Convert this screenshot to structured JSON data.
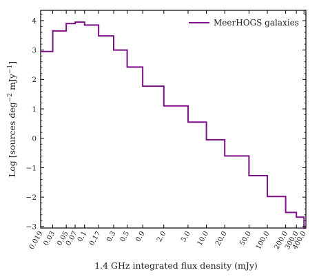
{
  "chart_data": {
    "type": "line",
    "style": "step-histogram",
    "xscale": "log",
    "xlabel": "1.4 GHz integrated flux density (mJy)",
    "ylabel_parts": {
      "main": "Log [sources deg",
      "exp1": "−2",
      "mid": " mJy",
      "exp2": "−1",
      "end": "]"
    },
    "xlim": [
      0.019,
      430
    ],
    "ylim": [
      -3.05,
      4.35
    ],
    "x_tick_labels": [
      "0.019",
      "0.03",
      "0.05",
      "0.07",
      "0.1",
      "0.17",
      "0.3",
      "0.5",
      "0.9",
      "2.0",
      "5.0",
      "10.0",
      "20.0",
      "50.0",
      "100.0",
      "200.0",
      "300.0",
      "400.0"
    ],
    "x_tick_values": [
      0.019,
      0.03,
      0.05,
      0.07,
      0.1,
      0.17,
      0.3,
      0.5,
      0.9,
      2.0,
      5.0,
      10.0,
      20.0,
      50.0,
      100.0,
      200.0,
      300.0,
      400.0
    ],
    "y_ticks": [
      -3,
      -2,
      -1,
      0,
      1,
      2,
      3,
      4
    ],
    "y_tick_labels": [
      "−3",
      "−2",
      "−1",
      "0",
      "1",
      "2",
      "3",
      "4"
    ],
    "grid": false,
    "legend_position": "top-right",
    "series": [
      {
        "name": "MeerHOGS galaxies",
        "color": "#7b0f86",
        "bin_edges": [
          0.019,
          0.03,
          0.05,
          0.07,
          0.1,
          0.17,
          0.3,
          0.5,
          0.9,
          2.0,
          5.0,
          10.0,
          20.0,
          50.0,
          100.0,
          200.0,
          300.0,
          400.0
        ],
        "values": [
          2.95,
          3.65,
          3.9,
          3.95,
          3.85,
          3.48,
          3.0,
          2.42,
          1.77,
          1.1,
          0.55,
          -0.05,
          -0.6,
          -1.27,
          -1.98,
          -2.52,
          -2.68,
          -3.05
        ]
      }
    ]
  }
}
